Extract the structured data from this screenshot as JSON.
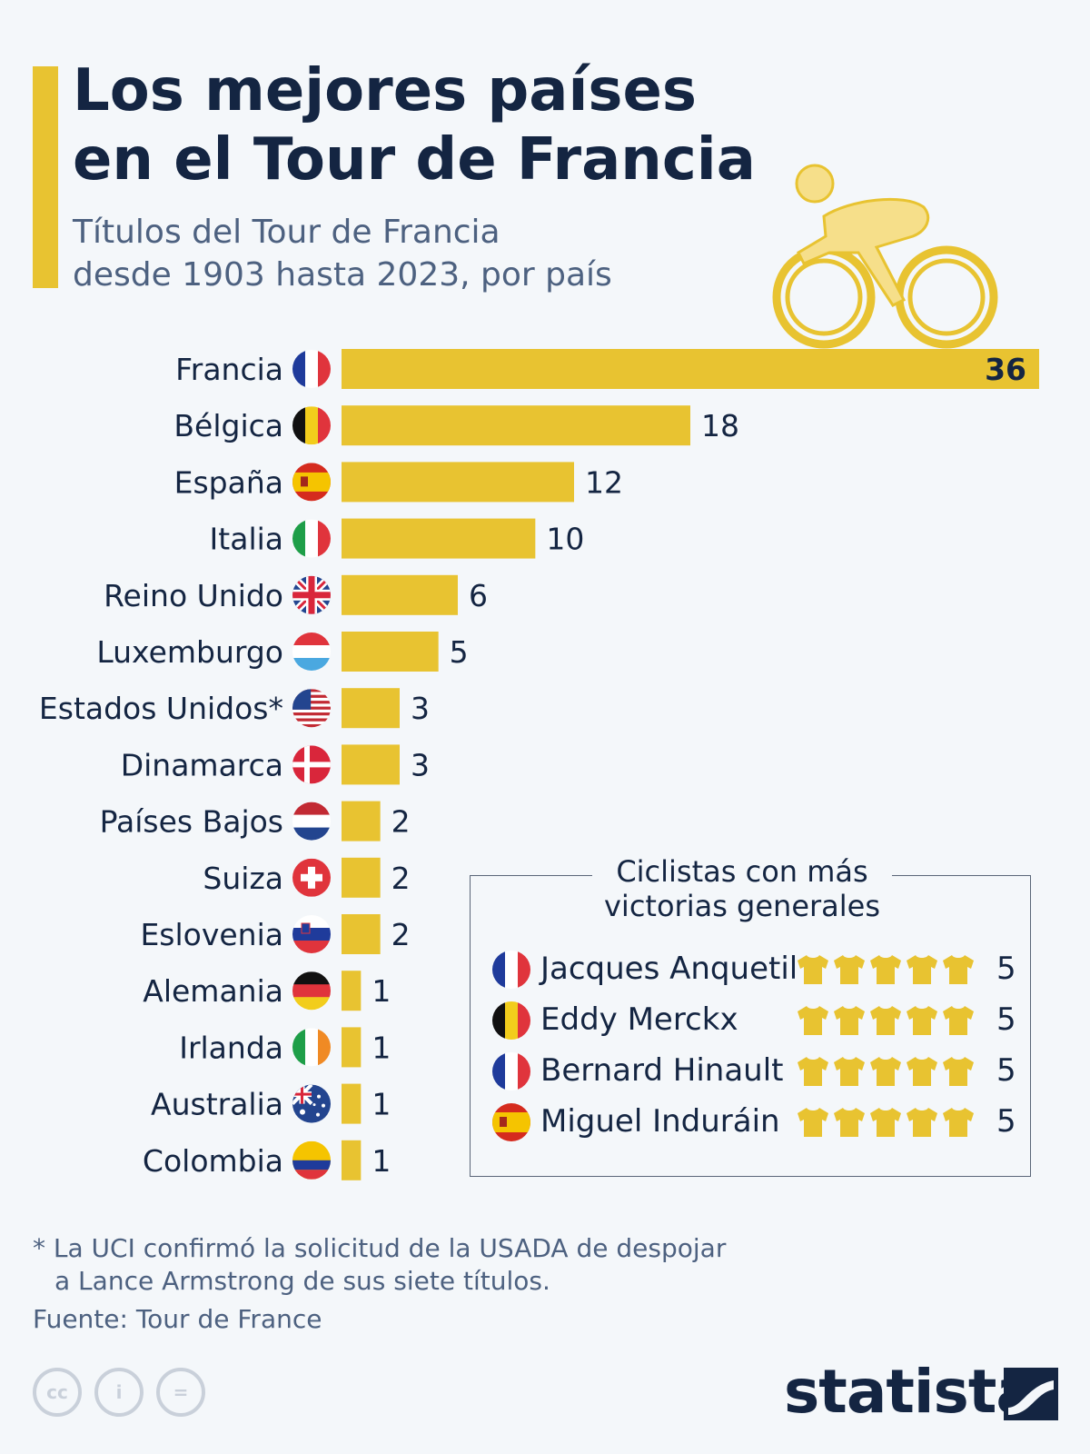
{
  "header": {
    "title_line1": "Los mejores países",
    "title_line2": "en el Tour de Francia",
    "subtitle_line1": "Títulos del Tour de Francia",
    "subtitle_line2": "desde 1903 hasta 2023, por país"
  },
  "colors": {
    "accent": "#e8c331",
    "text": "#142542",
    "muted": "#4d6180",
    "background": "#f4f7fa"
  },
  "chart_data": {
    "type": "bar",
    "orientation": "horizontal",
    "categories": [
      "Francia",
      "Bélgica",
      "España",
      "Italia",
      "Reino Unido",
      "Luxemburgo",
      "Estados Unidos*",
      "Dinamarca",
      "Países Bajos",
      "Suiza",
      "Eslovenia",
      "Alemania",
      "Irlanda",
      "Australia",
      "Colombia"
    ],
    "values": [
      36,
      18,
      12,
      10,
      6,
      5,
      3,
      3,
      2,
      2,
      2,
      1,
      1,
      1,
      1
    ],
    "flags": [
      "fr",
      "be",
      "es",
      "it",
      "gb",
      "lu",
      "us",
      "dk",
      "nl",
      "ch",
      "si",
      "de",
      "ie",
      "au",
      "co"
    ],
    "xlim": [
      0,
      36
    ],
    "grid": false,
    "bar_color": "#e8c331"
  },
  "inset": {
    "title_line1": "Ciclistas con más",
    "title_line2": "victorias generales",
    "riders": [
      {
        "name": "Jacques Anquetil",
        "flag": "fr",
        "wins": "5"
      },
      {
        "name": "Eddy Merckx",
        "flag": "be",
        "wins": "5"
      },
      {
        "name": "Bernard Hinault",
        "flag": "fr",
        "wins": "5"
      },
      {
        "name": "Miguel Induráin",
        "flag": "es",
        "wins": "5"
      }
    ],
    "jersey_icon": "yellow-jersey-icon"
  },
  "footer": {
    "footnote_line1": "* La UCI confirmó la solicitud de la USADA de despojar",
    "footnote_line2": "a Lance Armstrong de sus siete títulos.",
    "source": "Fuente: Tour de France",
    "license_icons": [
      "cc-icon",
      "by-icon",
      "nd-icon"
    ],
    "license_glyphs": [
      "cc",
      "i",
      "="
    ],
    "brand": "statista"
  }
}
